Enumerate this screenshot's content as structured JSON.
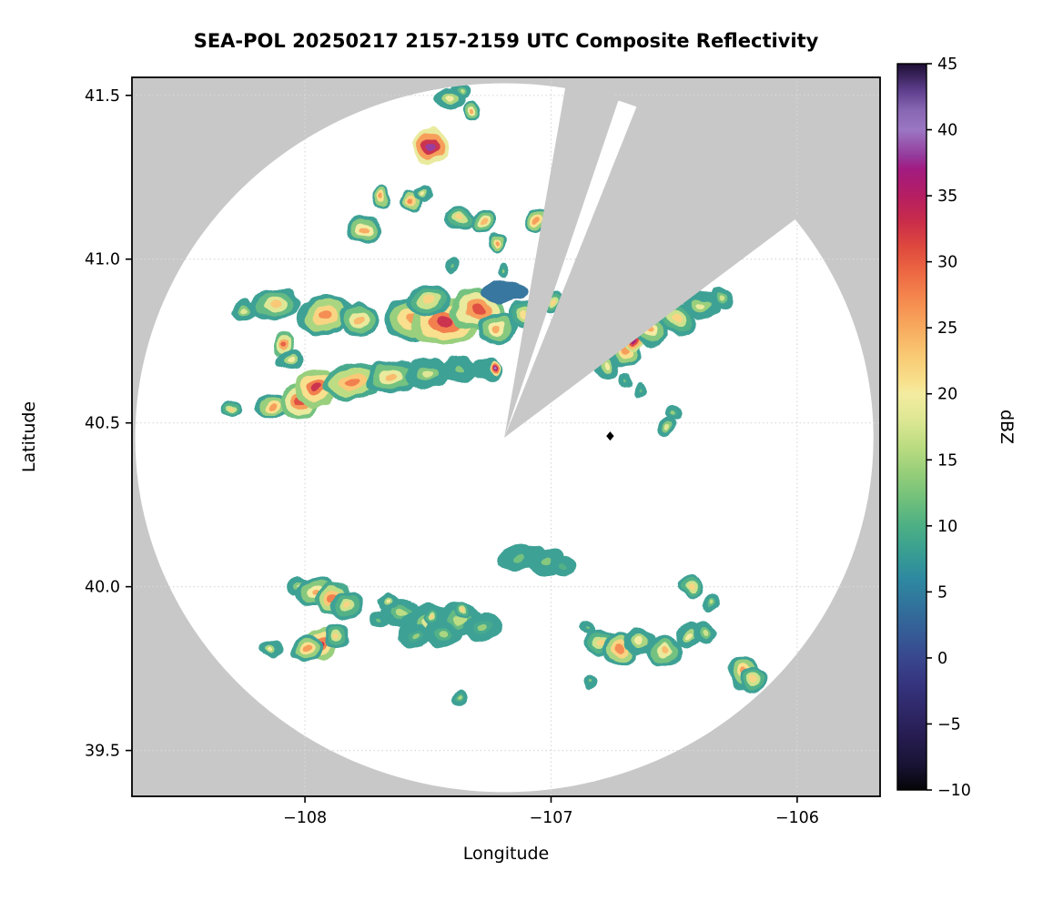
{
  "figure": {
    "title": "SEA-POL 20250217 2157-2159 UTC Composite Reflectivity",
    "xlabel": "Longitude",
    "ylabel": "Latitude",
    "outside_color": "#c8c8c8",
    "radar_area_color": "#ffffff",
    "grid_color": "#d9d9d9",
    "frame_color": "#000000"
  },
  "chart_data": {
    "type": "heatmap",
    "title": "SEA-POL 20250217 2157-2159 UTC Composite Reflectivity",
    "xlabel": "Longitude",
    "ylabel": "Latitude",
    "xlim": [
      -108.703,
      -105.663
    ],
    "ylim": [
      39.36,
      41.555
    ],
    "grid": true,
    "xticks": [
      {
        "v": -108,
        "label": "−108"
      },
      {
        "v": -107,
        "label": "−107"
      },
      {
        "v": -106,
        "label": "−106"
      }
    ],
    "yticks": [
      {
        "v": 39.5,
        "label": "39.5"
      },
      {
        "v": 40.0,
        "label": "40.0"
      },
      {
        "v": 40.5,
        "label": "40.5"
      },
      {
        "v": 41.0,
        "label": "41.0"
      },
      {
        "v": 41.5,
        "label": "41.5"
      }
    ],
    "colorbar": {
      "label": "dBZ",
      "min": -10,
      "max": 45,
      "ticks": [
        {
          "v": 45,
          "label": "45"
        },
        {
          "v": 40,
          "label": "40"
        },
        {
          "v": 35,
          "label": "35"
        },
        {
          "v": 30,
          "label": "30"
        },
        {
          "v": 25,
          "label": "25"
        },
        {
          "v": 20,
          "label": "20"
        },
        {
          "v": 15,
          "label": "15"
        },
        {
          "v": 10,
          "label": "10"
        },
        {
          "v": 5,
          "label": "5"
        },
        {
          "v": 0,
          "label": "0"
        },
        {
          "v": -5,
          "label": "−5"
        },
        {
          "v": -10,
          "label": "−10"
        }
      ],
      "stops": [
        [
          -10,
          "#050508"
        ],
        [
          -8,
          "#191436"
        ],
        [
          -6,
          "#261c50"
        ],
        [
          -4,
          "#2f2868"
        ],
        [
          -2,
          "#35347e"
        ],
        [
          0,
          "#38478e"
        ],
        [
          2,
          "#355d96"
        ],
        [
          4,
          "#31739c"
        ],
        [
          6,
          "#2e89a0"
        ],
        [
          8,
          "#389e92"
        ],
        [
          10,
          "#4daf84"
        ],
        [
          12,
          "#70c07b"
        ],
        [
          14,
          "#96ce79"
        ],
        [
          16,
          "#bbdc81"
        ],
        [
          18,
          "#dde793"
        ],
        [
          20,
          "#f4eca0"
        ],
        [
          21,
          "#f8df8b"
        ],
        [
          23,
          "#f9c873"
        ],
        [
          25,
          "#f8aa5e"
        ],
        [
          27,
          "#f58b4f"
        ],
        [
          29,
          "#ee6b44"
        ],
        [
          31,
          "#df4b3d"
        ],
        [
          33,
          "#ca2d49"
        ],
        [
          35,
          "#b51e62"
        ],
        [
          37,
          "#a21b80"
        ],
        [
          38,
          "#95399c"
        ],
        [
          40,
          "#9b77c3"
        ],
        [
          41.5,
          "#8766b2"
        ],
        [
          43,
          "#5d3e8c"
        ],
        [
          45,
          "#1d0e33"
        ]
      ]
    },
    "radar": {
      "center_lon": -107.19,
      "center_lat": 40.455,
      "radius_lon_deg": 1.5,
      "radius_lat_deg": 1.082,
      "blocked_sectors_deg": [
        [
          9.5,
          18
        ],
        [
          21,
          52
        ]
      ]
    },
    "marker": {
      "lon": -106.76,
      "lat": 40.46,
      "shape": "diamond",
      "color": "#000000"
    },
    "echo_fields": [
      "lon",
      "lat",
      "dbz",
      "rx_deg_lon",
      "ry_deg_lat",
      "rot_deg"
    ],
    "echoes": [
      [
        -107.41,
        41.49,
        20,
        0.05,
        0.025,
        0
      ],
      [
        -107.36,
        41.515,
        16,
        0.03,
        0.018,
        0
      ],
      [
        -107.32,
        41.455,
        25,
        0.028,
        0.022,
        0
      ],
      [
        -107.49,
        41.345,
        38,
        0.055,
        0.045,
        0
      ],
      [
        -107.69,
        41.19,
        26,
        0.03,
        0.025,
        0
      ],
      [
        -107.57,
        41.175,
        27,
        0.035,
        0.025,
        0
      ],
      [
        -107.52,
        41.2,
        20,
        0.028,
        0.02,
        0
      ],
      [
        -107.76,
        41.09,
        25,
        0.06,
        0.03,
        -15
      ],
      [
        -107.37,
        41.125,
        22,
        0.05,
        0.03,
        0
      ],
      [
        -107.27,
        41.115,
        24,
        0.04,
        0.028,
        0
      ],
      [
        -107.06,
        41.12,
        26,
        0.035,
        0.03,
        0
      ],
      [
        -107.22,
        41.05,
        26,
        0.028,
        0.022,
        0
      ],
      [
        -107.4,
        40.985,
        12,
        0.022,
        0.02,
        0
      ],
      [
        -107.19,
        40.965,
        14,
        0.02,
        0.018,
        0
      ],
      [
        -108.25,
        40.845,
        18,
        0.04,
        0.025,
        0
      ],
      [
        -108.12,
        40.86,
        23,
        0.08,
        0.035,
        -10
      ],
      [
        -107.92,
        40.83,
        27,
        0.09,
        0.045,
        -10
      ],
      [
        -107.78,
        40.815,
        24,
        0.06,
        0.04,
        0
      ],
      [
        -108.09,
        40.74,
        30,
        0.035,
        0.03,
        0
      ],
      [
        -108.06,
        40.69,
        20,
        0.04,
        0.022,
        0
      ],
      [
        -107.56,
        40.82,
        26,
        0.09,
        0.05,
        -8
      ],
      [
        -107.43,
        40.81,
        33,
        0.11,
        0.055,
        -5
      ],
      [
        -107.3,
        40.845,
        31,
        0.08,
        0.05,
        0
      ],
      [
        -107.5,
        40.875,
        22,
        0.07,
        0.035,
        0
      ],
      [
        -107.22,
        40.79,
        25,
        0.06,
        0.04,
        0
      ],
      [
        -107.11,
        40.83,
        21,
        0.05,
        0.035,
        0
      ],
      [
        -107.19,
        40.9,
        4,
        0.07,
        0.025,
        -5
      ],
      [
        -106.99,
        40.87,
        22,
        0.035,
        0.028,
        0
      ],
      [
        -108.3,
        40.54,
        22,
        0.035,
        0.02,
        0
      ],
      [
        -108.13,
        40.55,
        26,
        0.05,
        0.03,
        0
      ],
      [
        -108.02,
        40.565,
        31,
        0.06,
        0.04,
        0
      ],
      [
        -107.955,
        40.61,
        33,
        0.07,
        0.045,
        -12
      ],
      [
        -107.81,
        40.625,
        28,
        0.09,
        0.045,
        -8
      ],
      [
        -107.65,
        40.64,
        24,
        0.08,
        0.04,
        -5
      ],
      [
        -107.5,
        40.65,
        18,
        0.07,
        0.035,
        0
      ],
      [
        -107.37,
        40.66,
        13,
        0.06,
        0.03,
        0
      ],
      [
        -107.26,
        40.665,
        8,
        0.05,
        0.028,
        0
      ],
      [
        -107.225,
        40.67,
        40,
        0.018,
        0.015,
        0
      ],
      [
        -106.77,
        40.675,
        20,
        0.04,
        0.03,
        0
      ],
      [
        -106.69,
        40.72,
        26,
        0.05,
        0.035,
        30
      ],
      [
        -106.66,
        40.755,
        36,
        0.032,
        0.028,
        0
      ],
      [
        -106.59,
        40.78,
        25,
        0.05,
        0.035,
        30
      ],
      [
        -106.49,
        40.82,
        22,
        0.07,
        0.035,
        25
      ],
      [
        -106.39,
        40.86,
        19,
        0.06,
        0.03,
        20
      ],
      [
        -106.31,
        40.875,
        17,
        0.04,
        0.025,
        0
      ],
      [
        -106.7,
        40.63,
        12,
        0.022,
        0.02,
        0
      ],
      [
        -106.64,
        40.6,
        11,
        0.02,
        0.018,
        0
      ],
      [
        -106.5,
        40.53,
        14,
        0.025,
        0.02,
        0
      ],
      [
        -106.53,
        40.49,
        18,
        0.022,
        0.02,
        0
      ],
      [
        -107.13,
        40.09,
        12,
        0.07,
        0.03,
        -8
      ],
      [
        -107.02,
        40.075,
        13,
        0.06,
        0.03,
        0
      ],
      [
        -107.07,
        40.105,
        8,
        0.035,
        0.02,
        0
      ],
      [
        -106.95,
        40.06,
        10,
        0.035,
        0.022,
        0
      ],
      [
        -108.02,
        40.0,
        18,
        0.04,
        0.025,
        0
      ],
      [
        -107.96,
        39.985,
        25,
        0.06,
        0.035,
        -20
      ],
      [
        -107.89,
        39.965,
        28,
        0.06,
        0.035,
        -20
      ],
      [
        -107.83,
        39.945,
        22,
        0.05,
        0.03,
        -20
      ],
      [
        -107.94,
        39.825,
        33,
        0.06,
        0.04,
        -10
      ],
      [
        -107.99,
        39.81,
        26,
        0.05,
        0.035,
        0
      ],
      [
        -107.87,
        39.85,
        22,
        0.04,
        0.03,
        0
      ],
      [
        -108.14,
        39.81,
        20,
        0.04,
        0.02,
        0
      ],
      [
        -107.61,
        39.92,
        16,
        0.06,
        0.035,
        0
      ],
      [
        -107.5,
        39.89,
        18,
        0.08,
        0.045,
        0
      ],
      [
        -107.37,
        39.9,
        16,
        0.07,
        0.04,
        0
      ],
      [
        -107.28,
        39.875,
        14,
        0.06,
        0.035,
        0
      ],
      [
        -107.56,
        39.85,
        14,
        0.05,
        0.03,
        0
      ],
      [
        -107.44,
        39.855,
        15,
        0.06,
        0.03,
        0
      ],
      [
        -107.48,
        39.905,
        22,
        0.025,
        0.02,
        0
      ],
      [
        -107.36,
        39.93,
        22,
        0.022,
        0.018,
        0
      ],
      [
        -107.7,
        39.9,
        12,
        0.03,
        0.02,
        0
      ],
      [
        -107.66,
        39.955,
        20,
        0.035,
        0.022,
        0
      ],
      [
        -106.85,
        39.875,
        12,
        0.025,
        0.02,
        0
      ],
      [
        -106.8,
        39.83,
        22,
        0.05,
        0.03,
        0
      ],
      [
        -106.72,
        39.81,
        27,
        0.055,
        0.04,
        0
      ],
      [
        -106.64,
        39.83,
        20,
        0.05,
        0.03,
        0
      ],
      [
        -106.54,
        39.805,
        24,
        0.055,
        0.035,
        0
      ],
      [
        -106.44,
        39.85,
        20,
        0.04,
        0.03,
        0
      ],
      [
        -106.38,
        39.86,
        17,
        0.035,
        0.025,
        0
      ],
      [
        -106.43,
        40.0,
        22,
        0.035,
        0.025,
        0
      ],
      [
        -106.35,
        39.95,
        16,
        0.03,
        0.02,
        0
      ],
      [
        -106.22,
        39.74,
        26,
        0.05,
        0.04,
        0
      ],
      [
        -106.18,
        39.715,
        22,
        0.04,
        0.03,
        0
      ],
      [
        -107.37,
        39.66,
        15,
        0.025,
        0.02,
        0
      ],
      [
        -106.84,
        39.71,
        13,
        0.022,
        0.018,
        0
      ]
    ]
  }
}
